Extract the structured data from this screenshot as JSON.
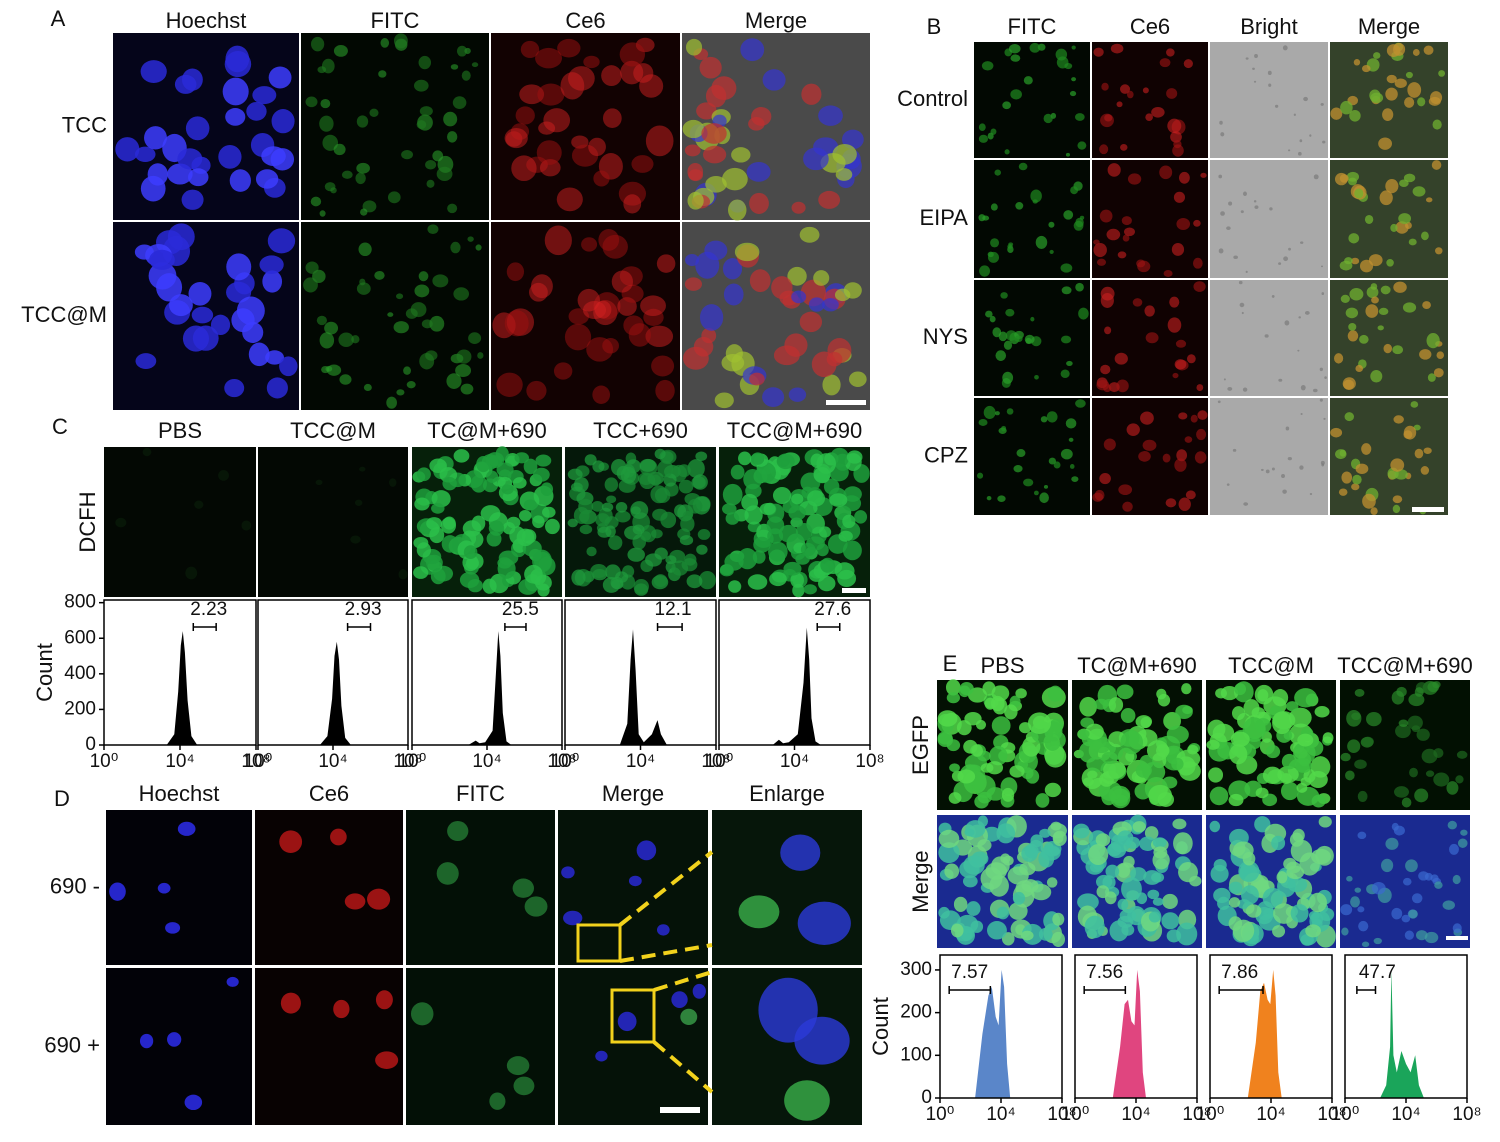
{
  "panels": {
    "A": {
      "label": "A",
      "columns": [
        "Hoechst",
        "FITC",
        "Ce6",
        "Merge"
      ],
      "rows": [
        "TCC",
        "TCC@M"
      ]
    },
    "B": {
      "label": "B",
      "columns": [
        "FITC",
        "Ce6",
        "Bright",
        "Merge"
      ],
      "rows": [
        "Control",
        "EIPA",
        "NYS",
        "CPZ"
      ]
    },
    "C": {
      "label": "C",
      "columns": [
        "PBS",
        "TCC@M",
        "TC@M+690",
        "TCC+690",
        "TCC@M+690"
      ],
      "rows": [
        "DCFH"
      ]
    },
    "D": {
      "label": "D",
      "columns": [
        "Hoechst",
        "Ce6",
        "FITC",
        "Merge",
        "Enlarge"
      ],
      "rows": [
        "690 -",
        "690 +"
      ]
    },
    "E": {
      "label": "E",
      "columns": [
        "PBS",
        "TC@M+690",
        "TCC@M",
        "TCC@M+690"
      ],
      "rows": [
        "EGFP",
        "Merge"
      ]
    }
  },
  "chart_data": [
    {
      "type": "area",
      "log_x": true,
      "color": "#000000",
      "ylabel": "Count",
      "x": [
        2000,
        5000,
        8000,
        11000,
        14000,
        18000,
        25000,
        40000,
        80000
      ],
      "values": [
        0,
        60,
        300,
        560,
        640,
        520,
        250,
        50,
        0
      ],
      "xlim": [
        1,
        100000000
      ],
      "ylim": [
        0,
        815
      ],
      "yticks": [
        0,
        200,
        400,
        600,
        800
      ],
      "xticks": [
        {
          "value": 1,
          "label": "10⁰"
        },
        {
          "value": 10000,
          "label": "10⁴"
        },
        {
          "value": 100000000,
          "label": "10⁸"
        }
      ],
      "gate": [
        50000,
        800000
      ],
      "gate_percent": 2.23
    },
    {
      "type": "area",
      "log_x": true,
      "color": "#000000",
      "x": [
        2000,
        5000,
        9000,
        12000,
        16000,
        21000,
        28000,
        45000,
        90000
      ],
      "values": [
        0,
        50,
        260,
        500,
        580,
        480,
        220,
        40,
        0
      ],
      "xlim": [
        1,
        100000000
      ],
      "ylim": [
        0,
        815
      ],
      "xticks": [
        {
          "value": 1,
          "label": "10⁰"
        },
        {
          "value": 10000,
          "label": "10⁴"
        },
        {
          "value": 100000000,
          "label": "10⁸"
        }
      ],
      "gate": [
        60000,
        1000000
      ],
      "gate_percent": 2.93
    },
    {
      "type": "area",
      "log_x": true,
      "color": "#000000",
      "x": [
        1000,
        2500,
        4000,
        8000,
        20000,
        30000,
        40000,
        52000,
        70000,
        110000,
        200000
      ],
      "values": [
        0,
        25,
        10,
        15,
        80,
        400,
        640,
        500,
        180,
        20,
        0
      ],
      "xlim": [
        1,
        100000000
      ],
      "ylim": [
        0,
        815
      ],
      "xticks": [
        {
          "value": 1,
          "label": "10⁰"
        },
        {
          "value": 10000,
          "label": "10⁴"
        },
        {
          "value": 100000000,
          "label": "10⁸"
        }
      ],
      "gate": [
        90000,
        1200000
      ],
      "gate_percent": 25.5
    },
    {
      "type": "area",
      "log_x": true,
      "color": "#000000",
      "x": [
        800,
        2000,
        3000,
        4000,
        5500,
        8000,
        15000,
        40000,
        80000,
        120000,
        250000
      ],
      "values": [
        0,
        120,
        480,
        650,
        420,
        60,
        15,
        60,
        140,
        60,
        0
      ],
      "xlim": [
        1,
        100000000
      ],
      "ylim": [
        0,
        815
      ],
      "xticks": [
        {
          "value": 1,
          "label": "10⁰"
        },
        {
          "value": 10000,
          "label": "10⁴"
        },
        {
          "value": 100000000,
          "label": "10⁸"
        }
      ],
      "gate": [
        80000,
        1600000
      ],
      "gate_percent": 12.1
    },
    {
      "type": "area",
      "log_x": true,
      "color": "#000000",
      "x": [
        700,
        1500,
        2500,
        5000,
        15000,
        30000,
        45000,
        60000,
        80000,
        130000,
        250000
      ],
      "values": [
        0,
        30,
        10,
        15,
        60,
        350,
        660,
        480,
        150,
        20,
        0
      ],
      "xlim": [
        1,
        100000000
      ],
      "ylim": [
        0,
        815
      ],
      "xticks": [
        {
          "value": 1,
          "label": "10⁰"
        },
        {
          "value": 10000,
          "label": "10⁴"
        },
        {
          "value": 100000000,
          "label": "10⁸"
        }
      ],
      "gate": [
        160000,
        2500000
      ],
      "gate_percent": 27.6
    },
    {
      "type": "area",
      "log_x": true,
      "color": "#5a86c9",
      "ylabel": "Count",
      "x": [
        200,
        600,
        1500,
        2500,
        4500,
        7000,
        11000,
        16000,
        25000,
        40000
      ],
      "values": [
        0,
        150,
        240,
        260,
        190,
        170,
        300,
        260,
        80,
        0
      ],
      "xlim": [
        1,
        100000000
      ],
      "ylim": [
        0,
        335
      ],
      "yticks": [
        0,
        100,
        200,
        300
      ],
      "xticks": [
        {
          "value": 1,
          "label": "10⁰"
        },
        {
          "value": 10000,
          "label": "10⁴"
        },
        {
          "value": 100000000,
          "label": "10⁸"
        }
      ],
      "gate": [
        4,
        2000
      ],
      "gate_percent": 7.57
    },
    {
      "type": "area",
      "log_x": true,
      "color": "#e0457f",
      "x": [
        300,
        900,
        1800,
        3000,
        5000,
        8000,
        12000,
        18000,
        28000,
        45000
      ],
      "values": [
        0,
        120,
        220,
        230,
        180,
        170,
        300,
        250,
        60,
        0
      ],
      "xlim": [
        1,
        100000000
      ],
      "ylim": [
        0,
        335
      ],
      "xticks": [
        {
          "value": 1,
          "label": "10⁰"
        },
        {
          "value": 10000,
          "label": "10⁴"
        },
        {
          "value": 100000000,
          "label": "10⁸"
        }
      ],
      "gate": [
        4,
        2000
      ],
      "gate_percent": 7.56
    },
    {
      "type": "area",
      "log_x": true,
      "color": "#f0821e",
      "x": [
        300,
        1000,
        2000,
        3500,
        6000,
        9000,
        14000,
        20000,
        30000,
        50000
      ],
      "values": [
        0,
        130,
        250,
        270,
        230,
        220,
        300,
        240,
        60,
        0
      ],
      "xlim": [
        1,
        100000000
      ],
      "ylim": [
        0,
        335
      ],
      "xticks": [
        {
          "value": 1,
          "label": "10⁰"
        },
        {
          "value": 10000,
          "label": "10⁴"
        },
        {
          "value": 100000000,
          "label": "10⁸"
        }
      ],
      "gate": [
        4,
        3000
      ],
      "gate_percent": 7.86
    },
    {
      "type": "area",
      "log_x": true,
      "color": "#1aa55a",
      "x": [
        200,
        500,
        900,
        1100,
        1500,
        2500,
        5000,
        10000,
        20000,
        40000,
        70000,
        150000
      ],
      "values": [
        0,
        30,
        120,
        300,
        100,
        60,
        110,
        80,
        60,
        100,
        30,
        0
      ],
      "xlim": [
        1,
        100000000
      ],
      "ylim": [
        0,
        335
      ],
      "xticks": [
        {
          "value": 1,
          "label": "10⁰"
        },
        {
          "value": 10000,
          "label": "10⁴"
        },
        {
          "value": 100000000,
          "label": "10⁸"
        }
      ],
      "gate": [
        6,
        100
      ],
      "gate_percent": 47.7
    }
  ]
}
